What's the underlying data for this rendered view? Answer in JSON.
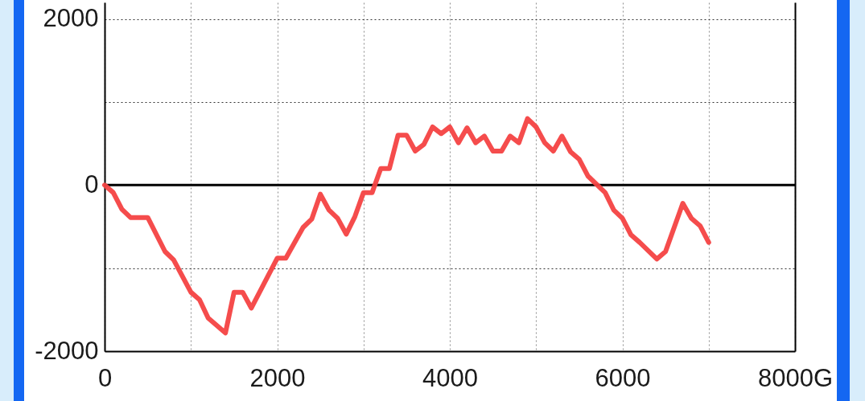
{
  "chart_data": {
    "type": "line",
    "x": [
      0,
      100,
      200,
      300,
      500,
      700,
      800,
      1000,
      1100,
      1200,
      1400,
      1500,
      1600,
      1700,
      2000,
      2100,
      2300,
      2400,
      2500,
      2600,
      2700,
      2800,
      2900,
      3000,
      3100,
      3200,
      3300,
      3400,
      3500,
      3600,
      3700,
      3800,
      3900,
      4000,
      4100,
      4200,
      4300,
      4400,
      4500,
      4600,
      4700,
      4800,
      4900,
      5000,
      5100,
      5200,
      5300,
      5400,
      5500,
      5600,
      5800,
      5900,
      6000,
      6100,
      6200,
      6400,
      6500,
      6700,
      6800,
      6900,
      7000
    ],
    "series": [
      {
        "color": "#f44242",
        "values": [
          0,
          -90,
          -290,
          -390,
          -390,
          -800,
          -900,
          -1290,
          -1380,
          -1600,
          -1780,
          -1290,
          -1290,
          -1480,
          -880,
          -880,
          -510,
          -410,
          -110,
          -300,
          -400,
          -590,
          -380,
          -90,
          -90,
          200,
          200,
          600,
          600,
          410,
          490,
          700,
          620,
          700,
          510,
          690,
          510,
          590,
          410,
          410,
          590,
          510,
          800,
          700,
          510,
          410,
          590,
          400,
          310,
          110,
          -90,
          -300,
          -400,
          -600,
          -690,
          -890,
          -800,
          -220,
          -400,
          -490,
          -690
        ]
      }
    ],
    "xlim": [
      0,
      8000
    ],
    "xticks": [
      0,
      {
        "value": 1000,
        "label": null
      },
      2000,
      {
        "value": 3000,
        "label": null
      },
      4000,
      {
        "value": 5000,
        "label": null
      },
      6000,
      {
        "value": 7000,
        "label": null
      },
      {
        "value": 8000,
        "label": "8000G"
      }
    ],
    "ylim": [
      -2000,
      2200
    ],
    "yticks": [
      -2000,
      {
        "value": -1000,
        "label": null
      },
      0,
      {
        "value": 1000,
        "label": null
      },
      2000
    ],
    "grid": true,
    "line_style": "solid",
    "ref_lines": [
      {
        "axis": "y",
        "value": 0,
        "color": "#000000"
      }
    ]
  }
}
